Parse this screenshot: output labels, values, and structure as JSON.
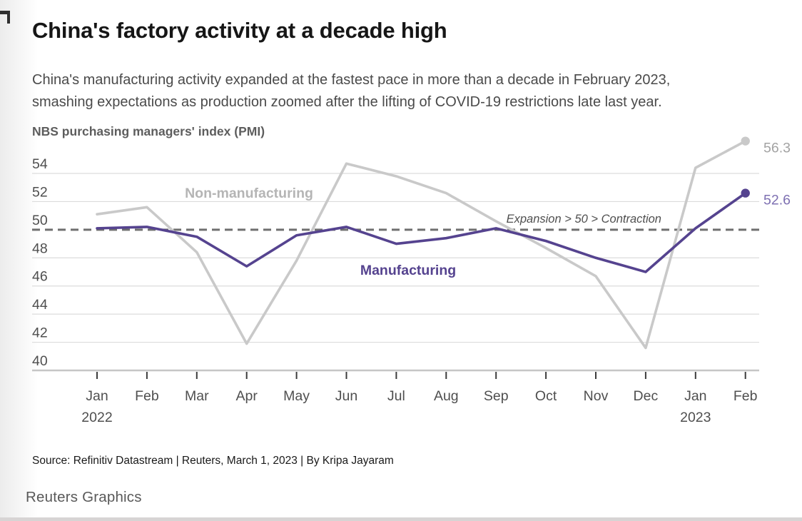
{
  "page": {
    "title": "China's factory activity at a decade high",
    "subtitle_line1": "China's manufacturing activity expanded at the fastest pace in more than a decade in February 2023,",
    "subtitle_line2": "smashing expectations as production zoomed after the lifting of COVID-19 restrictions late last year.",
    "source": "Source: Refinitiv Datastream | Reuters, March 1, 2023 | By Kripa Jayaram",
    "brand": "Reuters Graphics"
  },
  "colors": {
    "accent_purple": "#55438f",
    "series_gray": "#c9c9c9",
    "grid": "#dcdcdc",
    "axis": "#c6c6c6",
    "tick": "#3c3c3c",
    "reference_dash": "#6f6f6f",
    "axis_text": "#4f4f4f",
    "gray_label": "#b5b5b5",
    "gray_value_label": "#a3a3a3",
    "purple_value_label": "#7e70b2"
  },
  "chart_data": {
    "type": "line",
    "title": "NBS purchasing managers' index (PMI)",
    "categories": [
      "Jan",
      "Feb",
      "Mar",
      "Apr",
      "May",
      "Jun",
      "Jul",
      "Aug",
      "Sep",
      "Oct",
      "Nov",
      "Dec",
      "Jan",
      "Feb"
    ],
    "year_labels": [
      {
        "index": 0,
        "text": "2022"
      },
      {
        "index": 12,
        "text": "2023"
      }
    ],
    "yticks": [
      54,
      52,
      50,
      48,
      46,
      44,
      42,
      40
    ],
    "ylim": [
      40,
      57
    ],
    "grid": true,
    "legend": "inline-series-labels",
    "reference_line": {
      "value": 50,
      "label": "Expansion > 50 > Contraction"
    },
    "series": [
      {
        "name": "Non-manufacturing",
        "color": "#c9c9c9",
        "end_label": "56.3",
        "values": [
          51.1,
          51.6,
          48.4,
          41.9,
          47.8,
          54.7,
          53.8,
          52.6,
          50.6,
          48.7,
          46.7,
          41.6,
          54.4,
          56.3
        ]
      },
      {
        "name": "Manufacturing",
        "color": "#55438f",
        "end_label": "52.6",
        "values": [
          50.1,
          50.2,
          49.5,
          47.4,
          49.6,
          50.2,
          49.0,
          49.4,
          50.1,
          49.2,
          48.0,
          47.0,
          50.1,
          52.6
        ]
      }
    ]
  }
}
